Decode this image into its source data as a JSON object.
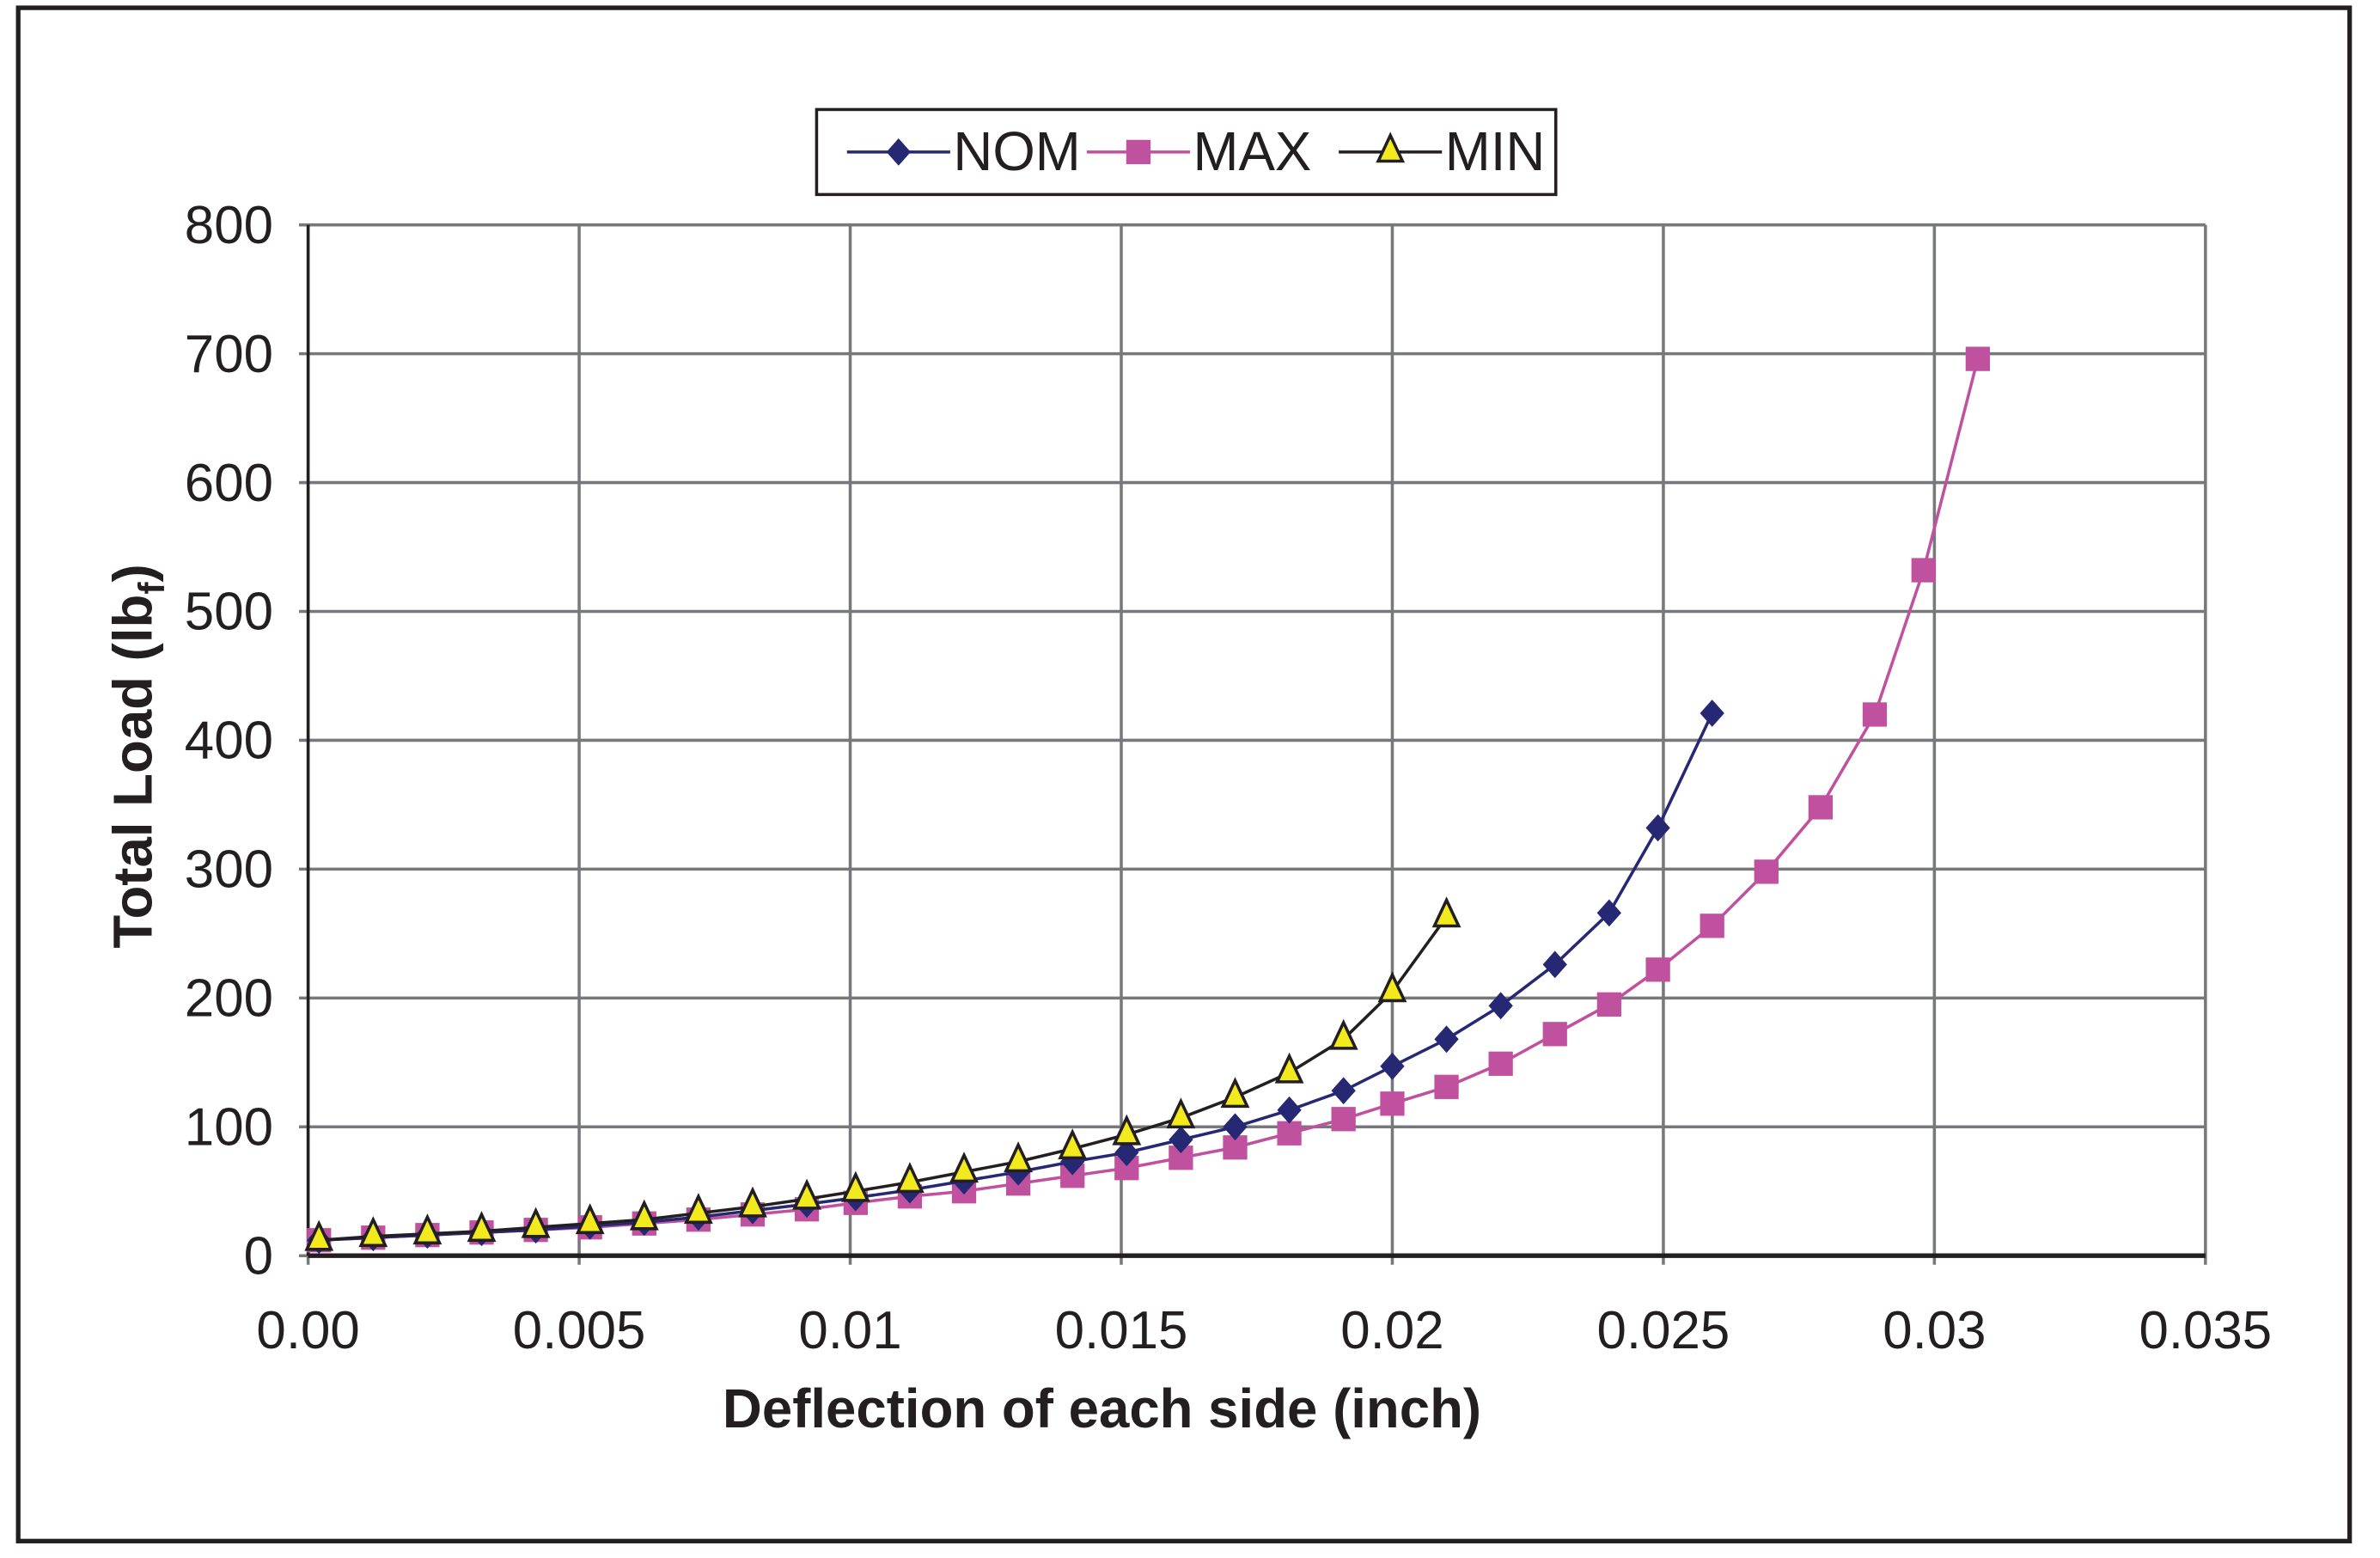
{
  "chart_data": {
    "type": "line",
    "title": "",
    "xlabel": "Deflection of each side (inch)",
    "ylabel": {
      "main": "Total Load (lb",
      "sub": "f",
      "end": ")"
    },
    "xlim": [
      0,
      0.035
    ],
    "ylim": [
      0,
      800
    ],
    "xticks": [
      0,
      0.005,
      0.01,
      0.015,
      0.02,
      0.025,
      0.03,
      0.035
    ],
    "xtick_labels": [
      "0.00",
      "0.005",
      "0.01",
      "0.015",
      "0.02",
      "0.025",
      "0.03",
      "0.035"
    ],
    "yticks": [
      0,
      100,
      200,
      300,
      400,
      500,
      600,
      700,
      800
    ],
    "ytick_labels": [
      "0",
      "100",
      "200",
      "300",
      "400",
      "500",
      "600",
      "700",
      "800"
    ],
    "grid": true,
    "legend_position": "top-center",
    "series": [
      {
        "name": "NOM",
        "color": "#262874",
        "marker": "diamond",
        "x": [
          0.0002,
          0.0012,
          0.0022,
          0.0032,
          0.0042,
          0.0052,
          0.0062,
          0.0072,
          0.0082,
          0.0092,
          0.0101,
          0.0111,
          0.0121,
          0.0131,
          0.0141,
          0.0151,
          0.0161,
          0.0171,
          0.0181,
          0.0191,
          0.02,
          0.021,
          0.022,
          0.023,
          0.024,
          0.0249,
          0.0259
        ],
        "y": [
          12,
          14,
          16,
          18,
          20,
          23,
          26,
          30,
          35,
          40,
          45,
          51,
          58,
          65,
          73,
          80,
          90,
          100,
          113,
          128,
          147,
          168,
          194,
          226,
          266,
          332,
          421
        ]
      },
      {
        "name": "MAX",
        "color": "#c0519e",
        "marker": "square",
        "x": [
          0.0002,
          0.0012,
          0.0022,
          0.0032,
          0.0042,
          0.0052,
          0.0062,
          0.0072,
          0.0082,
          0.0092,
          0.0101,
          0.0111,
          0.0121,
          0.0131,
          0.0141,
          0.0151,
          0.0161,
          0.0171,
          0.0181,
          0.0191,
          0.02,
          0.021,
          0.022,
          0.023,
          0.024,
          0.0249,
          0.0259,
          0.0269,
          0.0279,
          0.0289,
          0.0298,
          0.0308
        ],
        "y": [
          12,
          14,
          16,
          18,
          20,
          22,
          25,
          28,
          32,
          36,
          41,
          46,
          50,
          56,
          62,
          68,
          76,
          84,
          95,
          106,
          118,
          131,
          149,
          172,
          195,
          222,
          256,
          298,
          348,
          420,
          532,
          696
        ]
      },
      {
        "name": "MIN",
        "color": "#231f20",
        "marker": "triangle",
        "marker_fill": "#f2ea1c",
        "x": [
          0.0002,
          0.0012,
          0.0022,
          0.0032,
          0.0042,
          0.0052,
          0.0062,
          0.0072,
          0.0082,
          0.0092,
          0.0101,
          0.0111,
          0.0121,
          0.0131,
          0.0141,
          0.0151,
          0.0161,
          0.0171,
          0.0181,
          0.0191,
          0.02,
          0.021
        ],
        "y": [
          12,
          15,
          17,
          19,
          22,
          25,
          28,
          33,
          38,
          44,
          50,
          57,
          65,
          73,
          83,
          94,
          107,
          123,
          142,
          168,
          205,
          263
        ]
      }
    ]
  }
}
